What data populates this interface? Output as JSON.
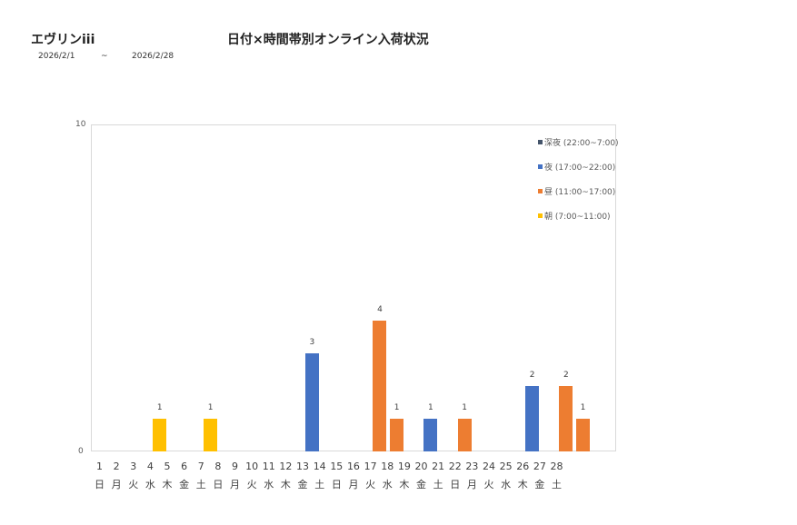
{
  "header": {
    "store_name": "エヴリンiii",
    "title": "日付×時間帯別オンライン入荷状況",
    "date_from": "2026/2/1",
    "date_sep": "~",
    "date_to": "2026/2/28"
  },
  "chart_data": {
    "type": "bar",
    "stacked": true,
    "title": "日付×時間帯別オンライン入荷状況",
    "xlabel": "",
    "ylabel": "",
    "ylim": [
      0,
      10
    ],
    "yticks": [
      "0",
      "10"
    ],
    "grid": false,
    "legend_position": "right-top",
    "categories": [
      "1",
      "2",
      "3",
      "4",
      "5",
      "6",
      "7",
      "8",
      "9",
      "10",
      "11",
      "12",
      "13",
      "14",
      "15",
      "16",
      "17",
      "18",
      "19",
      "20",
      "21",
      "22",
      "23",
      "24",
      "25",
      "26",
      "27",
      "28"
    ],
    "weekdays": [
      "日",
      "月",
      "火",
      "水",
      "木",
      "金",
      "土",
      "日",
      "月",
      "火",
      "水",
      "木",
      "金",
      "土",
      "日",
      "月",
      "火",
      "水",
      "木",
      "金",
      "土",
      "日",
      "月",
      "火",
      "水",
      "木",
      "金",
      "土"
    ],
    "series": [
      {
        "name": "深夜 (22:00~7:00)",
        "color": "#44546a",
        "values": [
          0,
          0,
          0,
          0,
          0,
          0,
          0,
          0,
          0,
          0,
          0,
          0,
          0,
          0,
          0,
          0,
          0,
          0,
          0,
          0,
          0,
          0,
          0,
          0,
          0,
          0,
          0,
          0
        ]
      },
      {
        "name": "夜 (17:00~22:00)",
        "color": "#4472c4",
        "values": [
          0,
          0,
          0,
          0,
          0,
          0,
          0,
          0,
          0,
          0,
          0,
          3,
          0,
          0,
          0,
          0,
          0,
          0,
          1,
          0,
          0,
          0,
          0,
          0,
          2,
          0,
          0,
          0
        ]
      },
      {
        "name": "昼 (11:00~17:00)",
        "color": "#ed7d31",
        "values": [
          0,
          0,
          0,
          0,
          0,
          0,
          0,
          0,
          0,
          0,
          0,
          0,
          0,
          0,
          0,
          4,
          1,
          0,
          0,
          0,
          1,
          0,
          0,
          0,
          0,
          0,
          2,
          1
        ]
      },
      {
        "name": "朝 (7:00~11:00)",
        "color": "#ffc000",
        "values": [
          0,
          0,
          1,
          0,
          0,
          1,
          0,
          0,
          0,
          0,
          0,
          0,
          0,
          0,
          0,
          0,
          0,
          0,
          0,
          0,
          0,
          0,
          0,
          0,
          0,
          0,
          0,
          0
        ]
      }
    ],
    "totals": [
      0,
      0,
      1,
      0,
      0,
      1,
      0,
      0,
      0,
      0,
      0,
      3,
      0,
      0,
      0,
      4,
      1,
      0,
      1,
      0,
      1,
      0,
      0,
      0,
      2,
      0,
      2,
      1
    ]
  }
}
